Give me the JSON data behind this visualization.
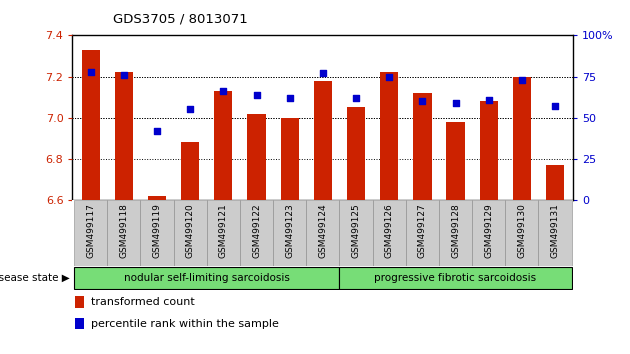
{
  "title": "GDS3705 / 8013071",
  "samples": [
    "GSM499117",
    "GSM499118",
    "GSM499119",
    "GSM499120",
    "GSM499121",
    "GSM499122",
    "GSM499123",
    "GSM499124",
    "GSM499125",
    "GSM499126",
    "GSM499127",
    "GSM499128",
    "GSM499129",
    "GSM499130",
    "GSM499131"
  ],
  "transformed_count": [
    7.33,
    7.22,
    6.62,
    6.88,
    7.13,
    7.02,
    7.0,
    7.18,
    7.05,
    7.22,
    7.12,
    6.98,
    7.08,
    7.2,
    6.77
  ],
  "percentile_rank": [
    78,
    76,
    42,
    55,
    66,
    64,
    62,
    77,
    62,
    75,
    60,
    59,
    61,
    73,
    57
  ],
  "ylim_left": [
    6.6,
    7.4
  ],
  "ylim_right": [
    0,
    100
  ],
  "yticks_left": [
    6.6,
    6.8,
    7.0,
    7.2,
    7.4
  ],
  "yticks_right": [
    0,
    25,
    50,
    75,
    100
  ],
  "bar_color": "#cc2200",
  "dot_color": "#0000cc",
  "grid_color": "#000000",
  "nodular_n": 8,
  "progressive_n": 7,
  "nodular_label": "nodular self-limiting sarcoidosis",
  "progressive_label": "progressive fibrotic sarcoidosis",
  "disease_state_label": "disease state",
  "legend_bar_label": "transformed count",
  "legend_dot_label": "percentile rank within the sample",
  "right_axis_color": "#0000cc",
  "tick_label_color_left": "#cc2200",
  "tick_label_color_right": "#0000cc",
  "base_value": 6.6,
  "dot_size": 25,
  "bar_width": 0.55,
  "fig_width": 6.3,
  "fig_height": 3.54,
  "dpi": 100
}
